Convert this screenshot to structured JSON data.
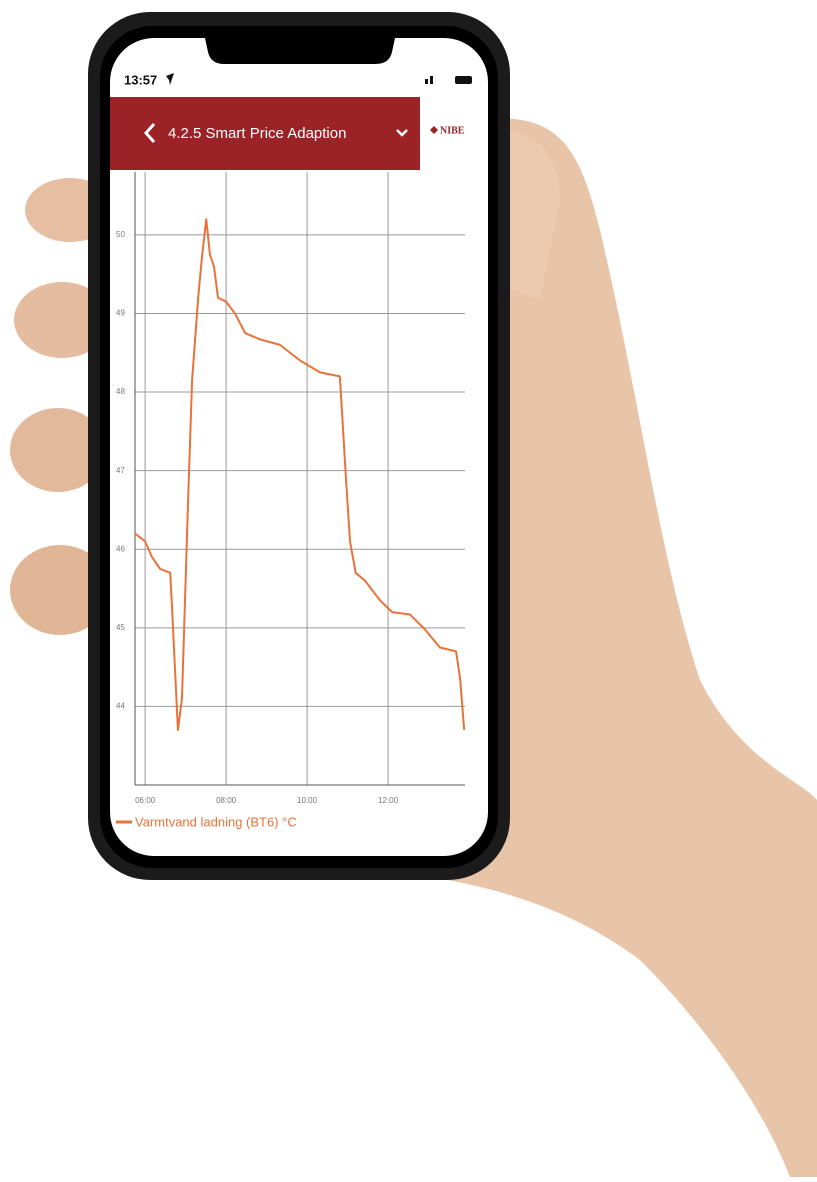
{
  "status_bar": {
    "time": "13:57"
  },
  "header": {
    "title": "4.2.5 Smart Price Adaption",
    "logo": "NIBE"
  },
  "chart_data": {
    "type": "line",
    "x": [
      5.75,
      6.0,
      6.17,
      6.37,
      6.62,
      6.67,
      6.81,
      6.91,
      7.06,
      7.16,
      7.31,
      7.41,
      7.51,
      7.6,
      7.7,
      7.8,
      8.0,
      8.22,
      8.47,
      8.84,
      9.33,
      9.83,
      10.32,
      10.81,
      10.96,
      11.06,
      11.2,
      11.43,
      11.8,
      12.1,
      12.54,
      12.91,
      13.28,
      13.68,
      13.78,
      13.88
    ],
    "series": [
      {
        "name": "Varmtvand ladning (BT6) °C",
        "color": "#e8733a",
        "values": [
          46.2,
          46.1,
          45.9,
          45.75,
          45.7,
          45.2,
          43.7,
          44.1,
          46.6,
          48.15,
          49.2,
          49.75,
          50.2,
          49.75,
          49.6,
          49.2,
          49.15,
          49.0,
          48.75,
          48.67,
          48.6,
          48.4,
          48.25,
          48.2,
          46.9,
          46.1,
          45.7,
          45.6,
          45.35,
          45.2,
          45.17,
          44.98,
          44.75,
          44.7,
          44.35,
          43.7
        ]
      }
    ],
    "xlim": [
      5.75,
      13.9
    ],
    "ylim": [
      43,
      50.8
    ],
    "xticks": [
      {
        "value": 6,
        "label": "06:00"
      },
      {
        "value": 8,
        "label": "08:00"
      },
      {
        "value": 10,
        "label": "10:00"
      },
      {
        "value": 12,
        "label": "12:00"
      }
    ],
    "yticks": [
      44,
      45,
      46,
      47,
      48,
      49,
      50
    ],
    "grid": true
  }
}
